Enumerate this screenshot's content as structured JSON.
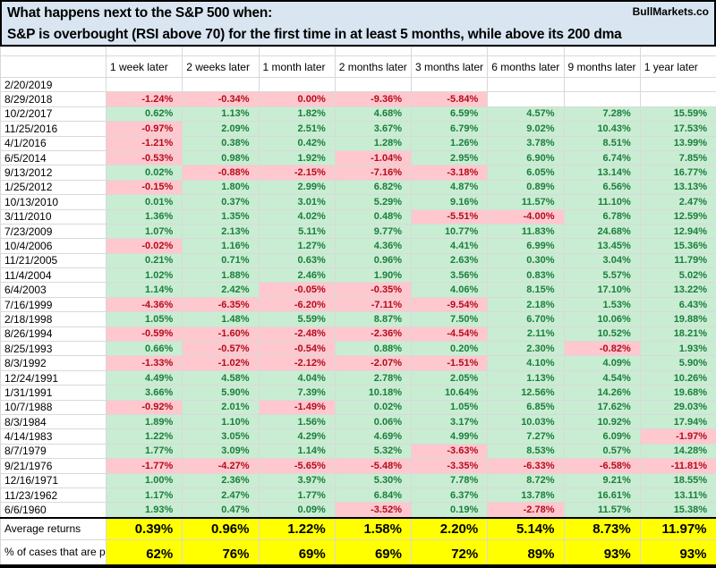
{
  "header": {
    "title_line1": "What happens next to the S&P 500 when:",
    "title_line2": "S&P is overbought (RSI above 70) for the first time in at least 5 months, while above its 200 dma",
    "brand": "BullMarkets.co"
  },
  "colors": {
    "title_bg": "#d9e6f2",
    "positive_bg": "#c9edd2",
    "positive_text": "#1b7e3c",
    "negative_bg": "#ffc8ce",
    "negative_text": "#b00d1d",
    "summary_bg": "#ffff00",
    "gridline": "#d9d9d9"
  },
  "chart_data": {
    "type": "table",
    "columns": [
      "1 week later",
      "2 weeks later",
      "1 month later",
      "2 months later",
      "3 months later",
      "6 months later",
      "9 months later",
      "1 year later"
    ],
    "rows": [
      {
        "date": "2/20/2019",
        "values": [
          null,
          null,
          null,
          null,
          null,
          null,
          null,
          null
        ]
      },
      {
        "date": "8/29/2018",
        "values": [
          "-1.24%",
          "-0.34%",
          "0.00%",
          "-9.36%",
          "-5.84%",
          null,
          null,
          null
        ]
      },
      {
        "date": "10/2/2017",
        "values": [
          "0.62%",
          "1.13%",
          "1.82%",
          "4.68%",
          "6.59%",
          "4.57%",
          "7.28%",
          "15.59%"
        ]
      },
      {
        "date": "11/25/2016",
        "values": [
          "-0.97%",
          "2.09%",
          "2.51%",
          "3.67%",
          "6.79%",
          "9.02%",
          "10.43%",
          "17.53%"
        ]
      },
      {
        "date": "4/1/2016",
        "values": [
          "-1.21%",
          "0.38%",
          "0.42%",
          "1.28%",
          "1.26%",
          "3.78%",
          "8.51%",
          "13.99%"
        ]
      },
      {
        "date": "6/5/2014",
        "values": [
          "-0.53%",
          "0.98%",
          "1.92%",
          "-1.04%",
          "2.95%",
          "6.90%",
          "6.74%",
          "7.85%"
        ]
      },
      {
        "date": "9/13/2012",
        "values": [
          "0.02%",
          "-0.88%",
          "-2.15%",
          "-7.16%",
          "-3.18%",
          "6.05%",
          "13.14%",
          "16.77%"
        ]
      },
      {
        "date": "1/25/2012",
        "values": [
          "-0.15%",
          "1.80%",
          "2.99%",
          "6.82%",
          "4.87%",
          "0.89%",
          "6.56%",
          "13.13%"
        ]
      },
      {
        "date": "10/13/2010",
        "values": [
          "0.01%",
          "0.37%",
          "3.01%",
          "5.29%",
          "9.16%",
          "11.57%",
          "11.10%",
          "2.47%"
        ]
      },
      {
        "date": "3/11/2010",
        "values": [
          "1.36%",
          "1.35%",
          "4.02%",
          "0.48%",
          "-5.51%",
          "-4.00%",
          "6.78%",
          "12.59%"
        ]
      },
      {
        "date": "7/23/2009",
        "values": [
          "1.07%",
          "2.13%",
          "5.11%",
          "9.77%",
          "10.77%",
          "11.83%",
          "24.68%",
          "12.94%"
        ]
      },
      {
        "date": "10/4/2006",
        "values": [
          "-0.02%",
          "1.16%",
          "1.27%",
          "4.36%",
          "4.41%",
          "6.99%",
          "13.45%",
          "15.36%"
        ]
      },
      {
        "date": "11/21/2005",
        "values": [
          "0.21%",
          "0.71%",
          "0.63%",
          "0.96%",
          "2.63%",
          "0.30%",
          "3.04%",
          "11.79%"
        ]
      },
      {
        "date": "11/4/2004",
        "values": [
          "1.02%",
          "1.88%",
          "2.46%",
          "1.90%",
          "3.56%",
          "0.83%",
          "5.57%",
          "5.02%"
        ]
      },
      {
        "date": "6/4/2003",
        "values": [
          "1.14%",
          "2.42%",
          "-0.05%",
          "-0.35%",
          "4.06%",
          "8.15%",
          "17.10%",
          "13.22%"
        ]
      },
      {
        "date": "7/16/1999",
        "values": [
          "-4.36%",
          "-6.35%",
          "-6.20%",
          "-7.11%",
          "-9.54%",
          "2.18%",
          "1.53%",
          "6.43%"
        ]
      },
      {
        "date": "2/18/1998",
        "values": [
          "1.05%",
          "1.48%",
          "5.59%",
          "8.87%",
          "7.50%",
          "6.70%",
          "10.06%",
          "19.88%"
        ]
      },
      {
        "date": "8/26/1994",
        "values": [
          "-0.59%",
          "-1.60%",
          "-2.48%",
          "-2.36%",
          "-4.54%",
          "2.11%",
          "10.52%",
          "18.21%"
        ]
      },
      {
        "date": "8/25/1993",
        "values": [
          "0.66%",
          "-0.57%",
          "-0.54%",
          "0.88%",
          "0.20%",
          "2.30%",
          "-0.82%",
          "1.93%"
        ]
      },
      {
        "date": "8/3/1992",
        "values": [
          "-1.33%",
          "-1.02%",
          "-2.12%",
          "-2.07%",
          "-1.51%",
          "4.10%",
          "4.09%",
          "5.90%"
        ]
      },
      {
        "date": "12/24/1991",
        "values": [
          "4.49%",
          "4.58%",
          "4.04%",
          "2.78%",
          "2.05%",
          "1.13%",
          "4.54%",
          "10.26%"
        ]
      },
      {
        "date": "1/31/1991",
        "values": [
          "3.66%",
          "5.90%",
          "7.39%",
          "10.18%",
          "10.64%",
          "12.56%",
          "14.26%",
          "19.68%"
        ]
      },
      {
        "date": "10/7/1988",
        "values": [
          "-0.92%",
          "2.01%",
          "-1.49%",
          "0.02%",
          "1.05%",
          "6.85%",
          "17.62%",
          "29.03%"
        ]
      },
      {
        "date": "8/3/1984",
        "values": [
          "1.89%",
          "1.10%",
          "1.56%",
          "0.06%",
          "3.17%",
          "10.03%",
          "10.92%",
          "17.94%"
        ]
      },
      {
        "date": "4/14/1983",
        "values": [
          "1.22%",
          "3.05%",
          "4.29%",
          "4.69%",
          "4.99%",
          "7.27%",
          "6.09%",
          "-1.97%"
        ]
      },
      {
        "date": "8/7/1979",
        "values": [
          "1.77%",
          "3.09%",
          "1.14%",
          "5.32%",
          "-3.63%",
          "8.53%",
          "0.57%",
          "14.28%"
        ]
      },
      {
        "date": "9/21/1976",
        "values": [
          "-1.77%",
          "-4.27%",
          "-5.65%",
          "-5.48%",
          "-3.35%",
          "-6.33%",
          "-6.58%",
          "-11.81%"
        ]
      },
      {
        "date": "12/16/1971",
        "values": [
          "1.00%",
          "2.36%",
          "3.97%",
          "5.30%",
          "7.78%",
          "8.72%",
          "9.21%",
          "18.55%"
        ]
      },
      {
        "date": "11/23/1962",
        "values": [
          "1.17%",
          "2.47%",
          "1.77%",
          "6.84%",
          "6.37%",
          "13.78%",
          "16.61%",
          "13.11%"
        ]
      },
      {
        "date": "6/6/1960",
        "values": [
          "1.93%",
          "0.47%",
          "0.09%",
          "-3.52%",
          "0.19%",
          "-2.78%",
          "11.57%",
          "15.38%"
        ]
      }
    ],
    "negative_display_overrides": [
      {
        "date": "8/29/2018",
        "col": 2
      }
    ],
    "summary": {
      "average_label": "Average returns",
      "average_values": [
        "0.39%",
        "0.96%",
        "1.22%",
        "1.58%",
        "2.20%",
        "5.14%",
        "8.73%",
        "11.97%"
      ],
      "percent_label": "% of cases that are positive",
      "percent_values": [
        "62%",
        "76%",
        "69%",
        "69%",
        "72%",
        "89%",
        "93%",
        "93%"
      ]
    }
  }
}
